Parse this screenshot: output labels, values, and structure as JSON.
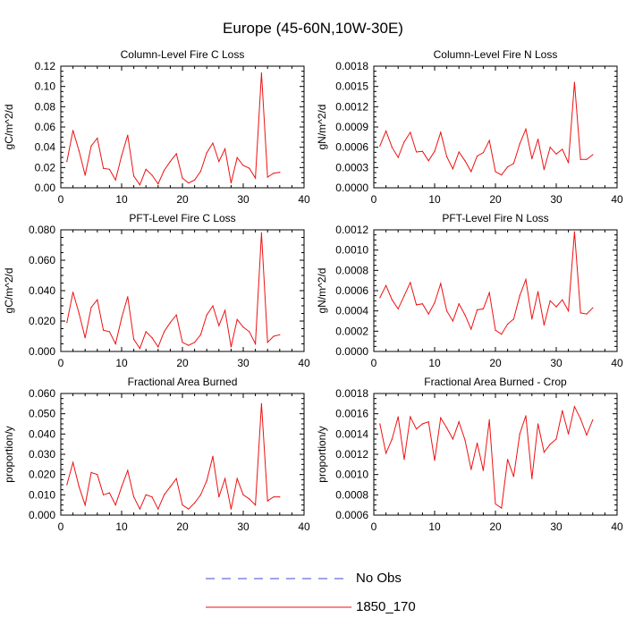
{
  "figure": {
    "title": "Europe (45-60N,10W-30E)"
  },
  "legend": {
    "items": [
      {
        "label": "No Obs",
        "color": "#4444cc",
        "dash": true
      },
      {
        "label": "1850_170",
        "color": "#ee1111",
        "dash": false
      }
    ]
  },
  "chart_data": [
    {
      "type": "line",
      "title": "Column-Level Fire C Loss",
      "ylabel": "gC/m^2/d",
      "xlim": [
        0,
        40
      ],
      "ylim": [
        0,
        0.125
      ],
      "xticks": [
        "0",
        "10",
        "20",
        "30",
        "40"
      ],
      "yticks": [
        "0.00",
        "0.02",
        "0.04",
        "0.06",
        "0.08",
        "0.10",
        "0.12"
      ],
      "x": [
        1,
        2,
        3,
        4,
        5,
        6,
        7,
        8,
        9,
        10,
        11,
        12,
        13,
        14,
        15,
        16,
        17,
        18,
        19,
        20,
        21,
        22,
        23,
        24,
        25,
        26,
        27,
        28,
        29,
        30,
        31,
        32,
        33,
        34,
        35,
        36
      ],
      "series": [
        {
          "name": "1850_170",
          "color": "#ee1111",
          "values": [
            0.027,
            0.059,
            0.038,
            0.013,
            0.043,
            0.051,
            0.02,
            0.019,
            0.008,
            0.033,
            0.054,
            0.012,
            0.003,
            0.019,
            0.013,
            0.004,
            0.018,
            0.027,
            0.035,
            0.01,
            0.005,
            0.008,
            0.017,
            0.036,
            0.046,
            0.027,
            0.04,
            0.005,
            0.031,
            0.023,
            0.02,
            0.01,
            0.118,
            0.011,
            0.015,
            0.016
          ]
        }
      ]
    },
    {
      "type": "line",
      "title": "Column-Level Fire N Loss",
      "ylabel": "gN/m^2/d",
      "xlim": [
        0,
        40
      ],
      "ylim": [
        0,
        0.0018
      ],
      "xticks": [
        "0",
        "10",
        "20",
        "30",
        "40"
      ],
      "yticks": [
        "0.0000",
        "0.0003",
        "0.0006",
        "0.0009",
        "0.0012",
        "0.0015",
        "0.0018"
      ],
      "x": [
        1,
        2,
        3,
        4,
        5,
        6,
        7,
        8,
        9,
        10,
        11,
        12,
        13,
        14,
        15,
        16,
        17,
        18,
        19,
        20,
        21,
        22,
        23,
        24,
        25,
        26,
        27,
        28,
        29,
        30,
        31,
        32,
        33,
        34,
        35,
        36
      ],
      "series": [
        {
          "name": "1850_170",
          "color": "#ee1111",
          "values": [
            0.00062,
            0.00084,
            0.0006,
            0.00045,
            0.00068,
            0.00082,
            0.00053,
            0.00054,
            0.0004,
            0.00054,
            0.00082,
            0.00046,
            0.00028,
            0.00053,
            0.0004,
            0.00024,
            0.00047,
            0.00052,
            0.0007,
            0.00024,
            0.00019,
            0.00031,
            0.00036,
            0.00065,
            0.00087,
            0.00043,
            0.00072,
            0.00027,
            0.0006,
            0.0005,
            0.00057,
            0.00037,
            0.00156,
            0.00042,
            0.00042,
            0.00049
          ]
        }
      ]
    },
    {
      "type": "line",
      "title": "PFT-Level Fire C Loss",
      "ylabel": "gC/m^2/d",
      "xlim": [
        0,
        40
      ],
      "ylim": [
        0,
        0.08
      ],
      "xticks": [
        "0",
        "10",
        "20",
        "30",
        "40"
      ],
      "yticks": [
        "0.000",
        "0.020",
        "0.040",
        "0.060",
        "0.080"
      ],
      "x": [
        1,
        2,
        3,
        4,
        5,
        6,
        7,
        8,
        9,
        10,
        11,
        12,
        13,
        14,
        15,
        16,
        17,
        18,
        19,
        20,
        21,
        22,
        23,
        24,
        25,
        26,
        27,
        28,
        29,
        30,
        31,
        32,
        33,
        34,
        35,
        36
      ],
      "series": [
        {
          "name": "1850_170",
          "color": "#ee1111",
          "values": [
            0.019,
            0.039,
            0.025,
            0.009,
            0.029,
            0.034,
            0.014,
            0.013,
            0.005,
            0.022,
            0.036,
            0.008,
            0.002,
            0.013,
            0.009,
            0.003,
            0.013,
            0.019,
            0.024,
            0.006,
            0.004,
            0.006,
            0.011,
            0.024,
            0.03,
            0.017,
            0.027,
            0.003,
            0.021,
            0.016,
            0.013,
            0.005,
            0.078,
            0.006,
            0.01,
            0.011
          ]
        }
      ]
    },
    {
      "type": "line",
      "title": "PFT-Level Fire N Loss",
      "ylabel": "gN/m^2/d",
      "xlim": [
        0,
        40
      ],
      "ylim": [
        0,
        0.0012
      ],
      "xticks": [
        "0",
        "10",
        "20",
        "30",
        "40"
      ],
      "yticks": [
        "0.0000",
        "0.0002",
        "0.0004",
        "0.0006",
        "0.0008",
        "0.0010",
        "0.0012"
      ],
      "x": [
        1,
        2,
        3,
        4,
        5,
        6,
        7,
        8,
        9,
        10,
        11,
        12,
        13,
        14,
        15,
        16,
        17,
        18,
        19,
        20,
        21,
        22,
        23,
        24,
        25,
        26,
        27,
        28,
        29,
        30,
        31,
        32,
        33,
        34,
        35,
        36
      ],
      "series": [
        {
          "name": "1850_170",
          "color": "#ee1111",
          "values": [
            0.00053,
            0.00065,
            0.00051,
            0.00042,
            0.00055,
            0.00068,
            0.00046,
            0.00047,
            0.00037,
            0.00048,
            0.00067,
            0.0004,
            0.0003,
            0.00047,
            0.00036,
            0.00022,
            0.00041,
            0.00042,
            0.00058,
            0.00021,
            0.00017,
            0.00027,
            0.00032,
            0.00055,
            0.00071,
            0.00032,
            0.00059,
            0.00026,
            0.0005,
            0.00044,
            0.00051,
            0.0004,
            0.00118,
            0.00038,
            0.00037,
            0.00043
          ]
        }
      ]
    },
    {
      "type": "line",
      "title": "Fractional Area Burned",
      "ylabel": "proportion/y",
      "xlim": [
        0,
        40
      ],
      "ylim": [
        0,
        0.06
      ],
      "xticks": [
        "0",
        "10",
        "20",
        "30",
        "40"
      ],
      "yticks": [
        "0.000",
        "0.010",
        "0.020",
        "0.030",
        "0.040",
        "0.050",
        "0.060"
      ],
      "x": [
        1,
        2,
        3,
        4,
        5,
        6,
        7,
        8,
        9,
        10,
        11,
        12,
        13,
        14,
        15,
        16,
        17,
        18,
        19,
        20,
        21,
        22,
        23,
        24,
        25,
        26,
        27,
        28,
        29,
        30,
        31,
        32,
        33,
        34,
        35,
        36
      ],
      "series": [
        {
          "name": "1850_170",
          "color": "#ee1111",
          "values": [
            0.015,
            0.026,
            0.014,
            0.005,
            0.021,
            0.02,
            0.01,
            0.011,
            0.005,
            0.014,
            0.022,
            0.009,
            0.003,
            0.01,
            0.009,
            0.003,
            0.01,
            0.014,
            0.018,
            0.005,
            0.003,
            0.006,
            0.01,
            0.017,
            0.029,
            0.009,
            0.018,
            0.003,
            0.018,
            0.01,
            0.008,
            0.005,
            0.055,
            0.007,
            0.009,
            0.009
          ]
        }
      ]
    },
    {
      "type": "line",
      "title": "Fractional Area Burned - Crop",
      "ylabel": "proportion/y",
      "xlim": [
        0,
        40
      ],
      "ylim": [
        0.0006,
        0.0018
      ],
      "xticks": [
        "0",
        "10",
        "20",
        "30",
        "40"
      ],
      "yticks": [
        "0.0006",
        "0.0008",
        "0.0010",
        "0.0012",
        "0.0014",
        "0.0016",
        "0.0018"
      ],
      "x": [
        1,
        2,
        3,
        4,
        5,
        6,
        7,
        8,
        9,
        10,
        11,
        12,
        13,
        14,
        15,
        16,
        17,
        18,
        19,
        20,
        21,
        22,
        23,
        24,
        25,
        26,
        27,
        28,
        29,
        30,
        31,
        32,
        33,
        34,
        35,
        36
      ],
      "series": [
        {
          "name": "1850_170",
          "color": "#ee1111",
          "values": [
            0.0015,
            0.00121,
            0.00135,
            0.00157,
            0.00115,
            0.00157,
            0.00145,
            0.0015,
            0.00152,
            0.00114,
            0.00156,
            0.00146,
            0.00135,
            0.00152,
            0.00134,
            0.00105,
            0.00131,
            0.00104,
            0.00154,
            0.00071,
            0.00067,
            0.00115,
            0.00098,
            0.0014,
            0.00158,
            0.00096,
            0.0015,
            0.00122,
            0.0013,
            0.00135,
            0.00163,
            0.0014,
            0.00167,
            0.00155,
            0.00139,
            0.00154
          ]
        }
      ]
    }
  ]
}
